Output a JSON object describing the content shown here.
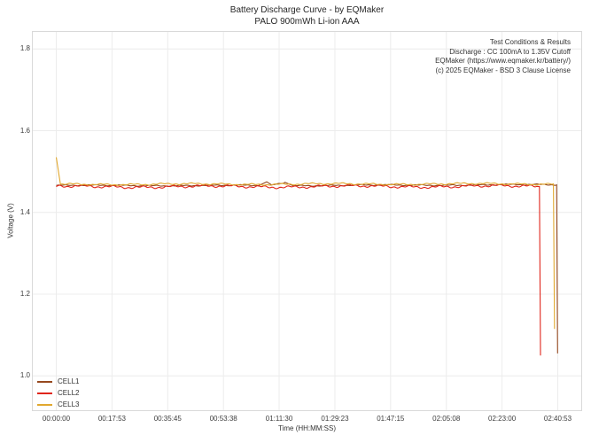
{
  "chart_data": {
    "type": "line",
    "title": "Battery Discharge Curve - by EQMaker",
    "subtitle": "PALO 900mWh Li-ion AAA",
    "xlabel": "Time (HH:MM:SS)",
    "ylabel": "Voltage (V)",
    "x_tick_labels": [
      "00:00:00",
      "00:17:53",
      "00:35:45",
      "00:53:38",
      "01:11:30",
      "01:29:23",
      "01:47:15",
      "02:05:08",
      "02:23:00",
      "02:40:53"
    ],
    "x_tick_seconds": [
      0,
      1073,
      2145,
      3218,
      4290,
      5363,
      6435,
      7508,
      8580,
      9653
    ],
    "y_ticks": [
      1.0,
      1.2,
      1.4,
      1.6,
      1.8
    ],
    "ylim": [
      0.914,
      1.844
    ],
    "grid": true,
    "legend_position": "lower-left",
    "background_color": "#ffffff",
    "grid_color": "#ececec",
    "frame_color": "#d9d9d9",
    "annotation": {
      "align": "right",
      "lines": [
        "Test Conditions & Results",
        "Discharge : CC 100mA to 1.35V Cutoff",
        "EQMaker (https://www.eqmaker.kr/battery/)",
        "(c) 2025 EQMaker - BSD 3 Clause License"
      ]
    },
    "series": [
      {
        "name": "CELL1",
        "color": "#96491F",
        "plateau_voltage": 1.466,
        "cutoff_voltage": 1.055,
        "cutoff_seconds": 9650,
        "noise_amp": 0.0012,
        "points": [
          [
            0,
            1.466
          ],
          [
            3900,
            1.466
          ],
          [
            4050,
            1.475
          ],
          [
            4150,
            1.467
          ],
          [
            4400,
            1.474
          ],
          [
            4550,
            1.466
          ],
          [
            9630,
            1.468
          ],
          [
            9650,
            1.055
          ]
        ]
      },
      {
        "name": "CELL2",
        "color": "#E0251B",
        "plateau_voltage": 1.463,
        "cutoff_voltage": 1.05,
        "cutoff_seconds": 9320,
        "noise_amp": 0.0028,
        "points": [
          [
            0,
            1.463
          ],
          [
            9300,
            1.464
          ],
          [
            9320,
            1.05
          ]
        ]
      },
      {
        "name": "CELL3",
        "color": "#E1A82F",
        "plateau_voltage": 1.47,
        "start_peak_voltage": 1.535,
        "cutoff_voltage": 1.115,
        "cutoff_seconds": 9590,
        "noise_amp": 0.0018,
        "points": [
          [
            0,
            1.535
          ],
          [
            80,
            1.469
          ],
          [
            9570,
            1.47
          ],
          [
            9590,
            1.115
          ]
        ]
      }
    ]
  }
}
